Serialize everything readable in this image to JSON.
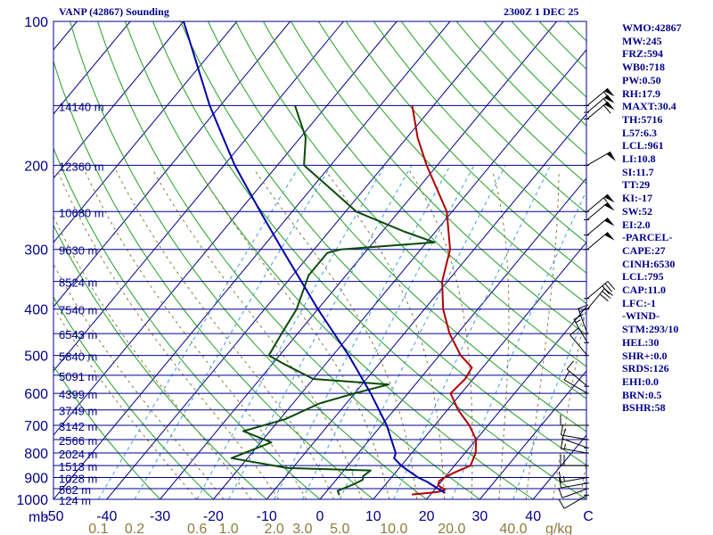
{
  "header": {
    "station": "VANP (42867) Sounding",
    "time": "2300Z  1 DEC 25"
  },
  "sidebar": [
    "WMO:42867",
    "MW:245",
    "FRZ:594",
    "WB0:718",
    "PW:0.50",
    "RH:17.9",
    "MAXT:30.4",
    "TH:5716",
    "L57:6.3",
    "LCL:961",
    "LI:10.8",
    "SI:11.7",
    "TT:29",
    "KI:-17",
    "SW:52",
    "EI:2.0",
    "-PARCEL-",
    "CAPE:27",
    "CINH:6530",
    "LCL:795",
    "CAP:11.0",
    "LFC:-1",
    "-WIND-",
    "STM:293/10",
    "HEL:30",
    "SHR+:0.0",
    "SRDS:126",
    "EHI:0.0",
    "BRN:0.5",
    "BSHR:58"
  ],
  "chart_data": {
    "type": "line",
    "title": "VANP (42867) Sounding",
    "subtitle": "2300Z  1 DEC 25",
    "y_axis": {
      "unit": "mb",
      "scale": "log",
      "range": [
        1000,
        100
      ],
      "ticks": [
        100,
        200,
        300,
        400,
        500,
        600,
        700,
        800,
        900,
        1000
      ]
    },
    "x_axis": {
      "unit": "C",
      "range": [
        -50,
        50
      ],
      "ticks": [
        -50,
        -40,
        -30,
        -20,
        -10,
        0,
        10,
        20,
        30,
        40
      ],
      "tick_labels": [
        "-50",
        "-40",
        "-30",
        "-20",
        "-10",
        "0",
        "10",
        "20",
        "30",
        "40"
      ]
    },
    "mixing_ratio_axis": {
      "unit": "g/kg",
      "ticks": [
        0.1,
        0.2,
        0.6,
        1.0,
        2.0,
        3.0,
        5.0,
        10.0,
        20.0,
        40.0
      ],
      "tick_labels": [
        "0.1",
        "0.2",
        "0.6",
        "1.0",
        "2.0",
        "3.0",
        "5.0",
        "10.0",
        "20.0",
        "40.0"
      ]
    },
    "height_levels": [
      {
        "p": 150,
        "label": "14140 m"
      },
      {
        "p": 200,
        "label": "12360 m"
      },
      {
        "p": 250,
        "label": "10680 m"
      },
      {
        "p": 300,
        "label": "9630 m"
      },
      {
        "p": 350,
        "label": "8524 m"
      },
      {
        "p": 400,
        "label": "7540 m"
      },
      {
        "p": 450,
        "label": "6543 m"
      },
      {
        "p": 500,
        "label": "5840 m"
      },
      {
        "p": 550,
        "label": "5091 m"
      },
      {
        "p": 600,
        "label": "4399 m"
      },
      {
        "p": 650,
        "label": "3749 m"
      },
      {
        "p": 700,
        "label": "3142 m"
      },
      {
        "p": 750,
        "label": "2566 m"
      },
      {
        "p": 800,
        "label": "2024 m"
      },
      {
        "p": 850,
        "label": "1513 m"
      },
      {
        "p": 900,
        "label": "1028 m"
      },
      {
        "p": 950,
        "label": "562 m"
      },
      {
        "p": 1000,
        "label": "124 m"
      }
    ],
    "series": [
      {
        "role": "temperature",
        "color": "#b00000",
        "points": [
          {
            "p": 977,
            "t": 16.5
          },
          {
            "p": 965,
            "t": 21.0
          },
          {
            "p": 955,
            "t": 22.0
          },
          {
            "p": 935,
            "t": 20.0
          },
          {
            "p": 915,
            "t": 19.5
          },
          {
            "p": 900,
            "t": 20.0
          },
          {
            "p": 880,
            "t": 21.0
          },
          {
            "p": 850,
            "t": 23.0
          },
          {
            "p": 800,
            "t": 22.0
          },
          {
            "p": 750,
            "t": 20.0
          },
          {
            "p": 700,
            "t": 16.5
          },
          {
            "p": 650,
            "t": 12.0
          },
          {
            "p": 600,
            "t": 8.0
          },
          {
            "p": 560,
            "t": 8.5
          },
          {
            "p": 530,
            "t": 8.0
          },
          {
            "p": 500,
            "t": 4.0
          },
          {
            "p": 450,
            "t": -1.5
          },
          {
            "p": 400,
            "t": -6.5
          },
          {
            "p": 350,
            "t": -11.0
          },
          {
            "p": 300,
            "t": -14.5
          },
          {
            "p": 250,
            "t": -21.0
          },
          {
            "p": 200,
            "t": -32.0
          },
          {
            "p": 175,
            "t": -38.0
          },
          {
            "p": 150,
            "t": -44.0
          }
        ]
      },
      {
        "role": "dewpoint",
        "color": "#0a4a0a",
        "points": [
          {
            "p": 980,
            "t": 3.0
          },
          {
            "p": 960,
            "t": 2.0
          },
          {
            "p": 930,
            "t": 4.0
          },
          {
            "p": 910,
            "t": 5.0
          },
          {
            "p": 895,
            "t": 4.5
          },
          {
            "p": 870,
            "t": 5.0
          },
          {
            "p": 860,
            "t": -11.0
          },
          {
            "p": 820,
            "t": -23.0
          },
          {
            "p": 760,
            "t": -18.0
          },
          {
            "p": 720,
            "t": -25.0
          },
          {
            "p": 680,
            "t": -19.0
          },
          {
            "p": 630,
            "t": -15.0
          },
          {
            "p": 600,
            "t": -10.0
          },
          {
            "p": 575,
            "t": -5.0
          },
          {
            "p": 560,
            "t": -20.0
          },
          {
            "p": 520,
            "t": -28.0
          },
          {
            "p": 500,
            "t": -32.0
          },
          {
            "p": 450,
            "t": -33.0
          },
          {
            "p": 400,
            "t": -34.0
          },
          {
            "p": 340,
            "t": -37.0
          },
          {
            "p": 305,
            "t": -37.0
          },
          {
            "p": 300,
            "t": -35.0
          },
          {
            "p": 290,
            "t": -18.5
          },
          {
            "p": 275,
            "t": -26.0
          },
          {
            "p": 250,
            "t": -38.0
          },
          {
            "p": 225,
            "t": -46.0
          },
          {
            "p": 200,
            "t": -55.0
          },
          {
            "p": 175,
            "t": -59.0
          },
          {
            "p": 150,
            "t": -66.0
          }
        ]
      },
      {
        "role": "parcel",
        "color": "#0000aa",
        "points": [
          {
            "p": 970,
            "t": 22.5
          },
          {
            "p": 950,
            "t": 20.5
          },
          {
            "p": 920,
            "t": 17.5
          },
          {
            "p": 900,
            "t": 15.0
          },
          {
            "p": 870,
            "t": 12.0
          },
          {
            "p": 850,
            "t": 10.0
          },
          {
            "p": 820,
            "t": 7.5
          },
          {
            "p": 800,
            "t": 7.0
          },
          {
            "p": 700,
            "t": 1.0
          },
          {
            "p": 600,
            "t": -7.0
          },
          {
            "p": 500,
            "t": -17.0
          },
          {
            "p": 400,
            "t": -30.0
          },
          {
            "p": 300,
            "t": -46.0
          },
          {
            "p": 250,
            "t": -56.0
          },
          {
            "p": 200,
            "t": -68.0
          },
          {
            "p": 150,
            "t": -82.0
          },
          {
            "p": 100,
            "t": -100.0
          }
        ]
      }
    ],
    "wind_barbs": [
      {
        "p": 980,
        "dir": 60,
        "spd": 10
      },
      {
        "p": 950,
        "dir": 70,
        "spd": 10
      },
      {
        "p": 925,
        "dir": 80,
        "spd": 10
      },
      {
        "p": 900,
        "dir": 80,
        "spd": 15
      },
      {
        "p": 850,
        "dir": 90,
        "spd": 20
      },
      {
        "p": 800,
        "dir": 100,
        "spd": 15
      },
      {
        "p": 780,
        "dir": 110,
        "spd": 10
      },
      {
        "p": 750,
        "dir": 100,
        "spd": 10
      },
      {
        "p": 700,
        "dir": 90,
        "spd": 10
      },
      {
        "p": 600,
        "dir": 120,
        "spd": 10
      },
      {
        "p": 580,
        "dir": 130,
        "spd": 10
      },
      {
        "p": 500,
        "dir": 140,
        "spd": 10
      },
      {
        "p": 470,
        "dir": 150,
        "spd": 15
      },
      {
        "p": 450,
        "dir": 160,
        "spd": 20
      },
      {
        "p": 400,
        "dir": 220,
        "spd": 30
      },
      {
        "p": 380,
        "dir": 230,
        "spd": 30
      },
      {
        "p": 300,
        "dir": 230,
        "spd": 50
      },
      {
        "p": 280,
        "dir": 230,
        "spd": 50
      },
      {
        "p": 260,
        "dir": 230,
        "spd": 50
      },
      {
        "p": 250,
        "dir": 230,
        "spd": 55
      },
      {
        "p": 200,
        "dir": 240,
        "spd": 50
      },
      {
        "p": 160,
        "dir": 230,
        "spd": 60
      },
      {
        "p": 155,
        "dir": 230,
        "spd": 55
      },
      {
        "p": 150,
        "dir": 230,
        "spd": 55
      }
    ]
  }
}
